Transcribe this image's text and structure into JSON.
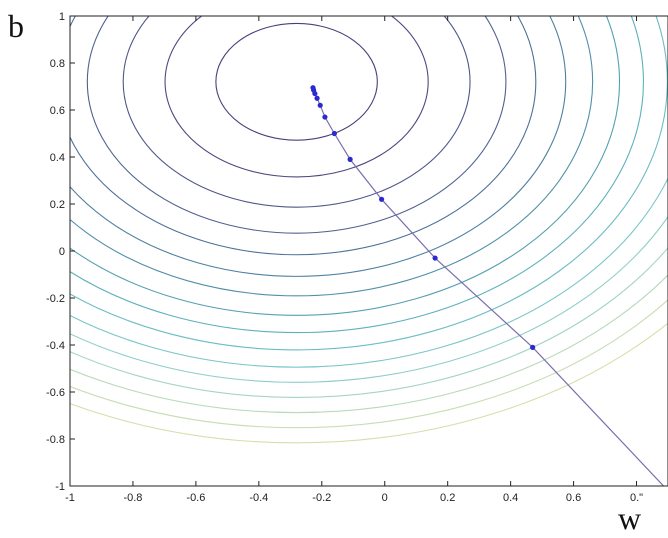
{
  "panel_label": "b",
  "chart_data": {
    "type": "line",
    "title": "",
    "xlabel": "w",
    "ylabel": "",
    "xlim": [
      -1,
      0.9
    ],
    "ylim": [
      -1,
      1
    ],
    "x_ticks": [
      -1,
      -0.8,
      -0.6,
      -0.4,
      -0.2,
      0,
      0.2,
      0.4,
      0.6,
      0.8
    ],
    "x_tick_labels": [
      "-1",
      "-0.8",
      "-0.6",
      "-0.4",
      "-0.2",
      "0",
      "0.2",
      "0.4",
      "0.6",
      "0.\""
    ],
    "y_ticks": [
      -1,
      -0.8,
      -0.6,
      -0.4,
      -0.2,
      0,
      0.2,
      0.4,
      0.6,
      0.8,
      1
    ],
    "y_tick_labels": [
      "-1",
      "-0.8",
      "-0.6",
      "-0.4",
      "-0.2",
      "0",
      "0.2",
      "0.4",
      "0.6",
      "0.8",
      "1"
    ],
    "grid": false,
    "contours": {
      "center": [
        -0.28,
        0.72
      ],
      "radii": [
        0.27,
        0.44,
        0.58,
        0.7,
        0.8,
        0.9,
        0.99,
        1.08,
        1.16,
        1.24,
        1.32,
        1.39,
        1.46,
        1.53,
        1.6,
        1.67
      ],
      "colors": [
        "#4a3f7a",
        "#4c4a80",
        "#4e5688",
        "#506290",
        "#4f7098",
        "#4e80a0",
        "#5090a8",
        "#55a0b2",
        "#5fb0bc",
        "#6cbcc4",
        "#7cc6c8",
        "#8fcec8",
        "#a4d4c4",
        "#b8d9bd",
        "#cadcb5",
        "#d9ddaa"
      ]
    },
    "path": {
      "color": "#7a6fae",
      "marker_color": "#2a2ad0",
      "x": [
        0.9,
        0.47,
        0.16,
        -0.01,
        -0.11,
        -0.16,
        -0.19,
        -0.205,
        -0.215,
        -0.222,
        -0.226,
        -0.228
      ],
      "y": [
        -1.02,
        -0.41,
        -0.03,
        0.22,
        0.39,
        0.5,
        0.57,
        0.62,
        0.65,
        0.67,
        0.685,
        0.695
      ],
      "markers": [
        false,
        true,
        true,
        true,
        true,
        true,
        true,
        true,
        true,
        true,
        true,
        true
      ]
    }
  }
}
